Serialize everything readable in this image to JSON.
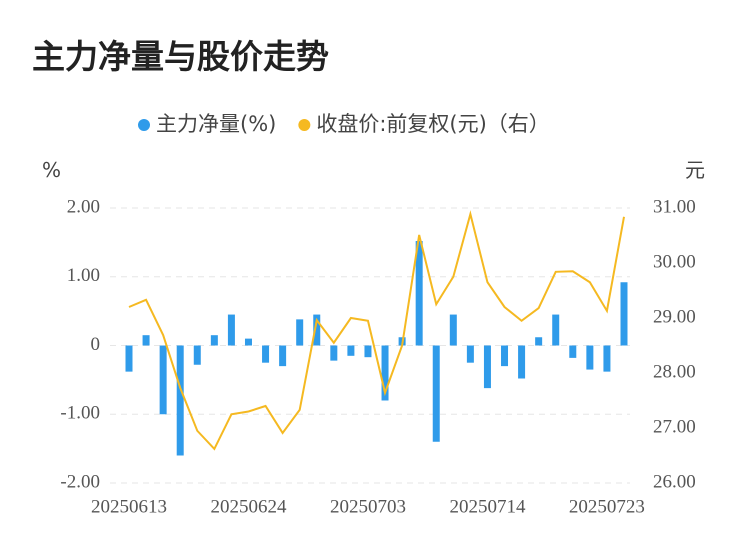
{
  "chart_data": {
    "type": "bar_line",
    "title": "主力净量与股价走势",
    "y_label": "%",
    "y2_label": "元",
    "categories": [
      "20250613",
      null,
      null,
      null,
      null,
      null,
      null,
      "20250624",
      null,
      null,
      null,
      null,
      null,
      null,
      "20250703",
      null,
      null,
      null,
      null,
      null,
      null,
      "20250714",
      null,
      null,
      null,
      null,
      null,
      null,
      "20250723",
      null
    ],
    "series": [
      {
        "name": "主力净量(%)",
        "type": "bar",
        "color": "#2f9bea",
        "axis": "y",
        "values": [
          -0.38,
          0.15,
          -1.0,
          -1.6,
          -0.28,
          0.15,
          0.45,
          0.1,
          -0.25,
          -0.3,
          0.38,
          0.45,
          -0.22,
          -0.15,
          -0.17,
          -0.8,
          0.12,
          1.52,
          -1.4,
          0.45,
          -0.25,
          -0.62,
          -0.3,
          -0.48,
          0.12,
          0.45,
          -0.18,
          -0.35,
          -0.38,
          0.92
        ]
      },
      {
        "name": "收盘价:前复权(元)（右）",
        "type": "line",
        "color": "#f5b921",
        "axis": "y2",
        "values": [
          29.2,
          29.33,
          28.69,
          27.73,
          26.95,
          26.62,
          27.25,
          27.3,
          27.4,
          26.91,
          27.33,
          28.96,
          28.55,
          29.0,
          28.95,
          27.64,
          28.5,
          30.51,
          29.25,
          29.75,
          30.89,
          29.65,
          29.2,
          28.95,
          29.18,
          29.84,
          29.85,
          29.65,
          29.13,
          30.84
        ]
      }
    ],
    "ylim": [
      -2,
      2
    ],
    "yticks": [
      {
        "value": 2,
        "label": "2.00"
      },
      {
        "value": 1,
        "label": "1.00"
      },
      0,
      {
        "value": -1,
        "label": "-1.00"
      },
      {
        "value": -2,
        "label": "-2.00"
      }
    ],
    "y2lim": [
      26,
      31
    ],
    "y2ticks": [
      {
        "value": 31,
        "label": "31.00"
      },
      {
        "value": 30,
        "label": "30.00"
      },
      {
        "value": 29,
        "label": "29.00"
      },
      {
        "value": 28,
        "label": "28.00"
      },
      {
        "value": 27,
        "label": "27.00"
      },
      {
        "value": 26,
        "label": "26.00"
      }
    ],
    "grid": true
  }
}
